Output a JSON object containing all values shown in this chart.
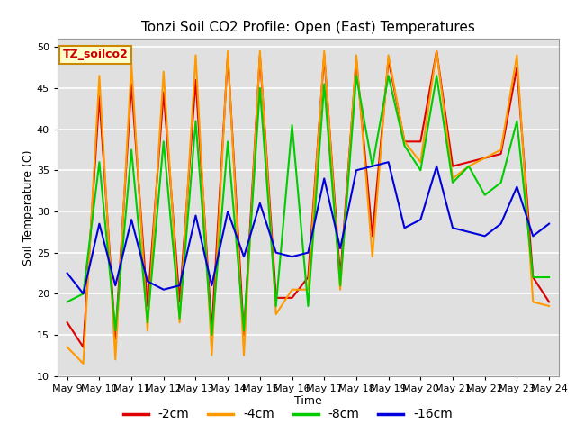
{
  "title": "Tonzi Soil CO2 Profile: Open (East) Temperatures",
  "xlabel": "Time",
  "ylabel": "Soil Temperature (C)",
  "ylim": [
    10,
    51
  ],
  "yticks": [
    10,
    15,
    20,
    25,
    30,
    35,
    40,
    45,
    50
  ],
  "legend_label": "TZ_soilco2",
  "legend_entries": [
    "-2cm",
    "-4cm",
    "-8cm",
    "-16cm"
  ],
  "colors": {
    "-2cm": "#dd0000",
    "-4cm": "#ff9900",
    "-8cm": "#00cc00",
    "-16cm": "#0000dd"
  },
  "background_color": "#e0e0e0",
  "plot_bg": "#e0e0e0",
  "x_labels": [
    "May 9",
    "May 10",
    "May 11",
    "May 12",
    "May 13",
    "May 14",
    "May 15",
    "May 16",
    "May 17",
    "May 18",
    "May 19",
    "May 20",
    "May 21",
    "May 22",
    "May 23",
    "May 24"
  ],
  "series": {
    "-2cm": [
      16.5,
      13.5,
      44.0,
      14.5,
      45.5,
      18.5,
      44.5,
      19.0,
      46.0,
      15.5,
      49.0,
      15.0,
      49.0,
      19.5,
      19.5,
      22.0,
      49.0,
      22.0,
      48.5,
      27.0,
      48.5,
      38.5,
      38.5,
      49.5,
      35.5,
      36.0,
      36.5,
      37.0,
      47.5,
      22.0,
      19.0
    ],
    "-4cm": [
      13.5,
      11.5,
      46.5,
      12.0,
      48.0,
      15.5,
      47.0,
      16.5,
      49.0,
      12.5,
      49.5,
      12.5,
      49.5,
      17.5,
      20.5,
      20.5,
      49.5,
      20.5,
      49.0,
      24.5,
      49.0,
      38.5,
      36.0,
      49.5,
      34.0,
      35.5,
      36.5,
      37.5,
      49.0,
      19.0,
      18.5
    ],
    "-8cm": [
      19.0,
      20.0,
      36.0,
      15.5,
      37.5,
      16.5,
      38.5,
      17.0,
      41.0,
      15.0,
      38.5,
      15.5,
      45.0,
      18.5,
      40.5,
      18.5,
      45.5,
      21.0,
      46.5,
      35.5,
      46.5,
      38.0,
      35.0,
      46.5,
      33.5,
      35.5,
      32.0,
      33.5,
      41.0,
      22.0,
      22.0
    ],
    "-16cm": [
      22.5,
      20.0,
      28.5,
      21.0,
      29.0,
      21.5,
      20.5,
      21.0,
      29.5,
      21.0,
      30.0,
      24.5,
      31.0,
      25.0,
      24.5,
      25.0,
      34.0,
      25.5,
      35.0,
      35.5,
      36.0,
      28.0,
      29.0,
      35.5,
      28.0,
      27.5,
      27.0,
      28.5,
      33.0,
      27.0,
      28.5
    ]
  },
  "n_points": 31,
  "xtick_every": 2
}
